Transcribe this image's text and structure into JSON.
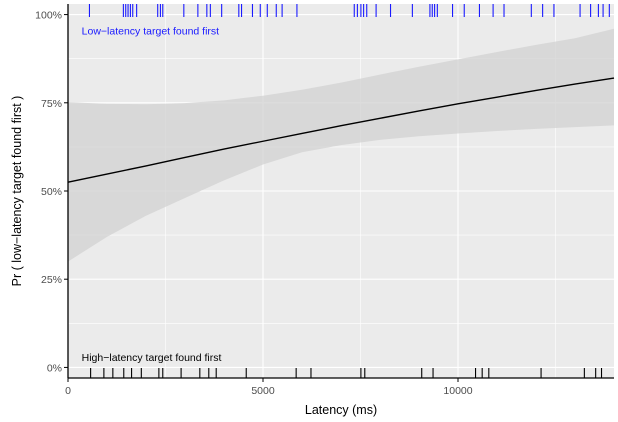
{
  "chart_data": {
    "type": "line",
    "title": "",
    "xlabel": "Latency (ms)",
    "ylabel": "Pr ( low−latency target found first )",
    "xlim": [
      0,
      14000
    ],
    "ylim": [
      -0.03,
      1.03
    ],
    "x_ticks": [
      0,
      5000,
      10000
    ],
    "x_tick_labels": [
      "0",
      "5000",
      "10000"
    ],
    "y_ticks": [
      0,
      0.25,
      0.5,
      0.75,
      1.0
    ],
    "y_tick_labels": [
      "0%",
      "25%",
      "50%",
      "75%",
      "100%"
    ],
    "grid": true,
    "colors": {
      "panel": "#ebebeb",
      "grid": "#ffffff",
      "fit_line": "#000000",
      "ribbon": "#d2d2d2",
      "top_rug": "#1a1aff",
      "bottom_rug": "#000000",
      "axis": "#000000",
      "tick_text": "#4d4d4d"
    },
    "annotations": [
      {
        "text": "Low−latency target found first",
        "x": 350,
        "y": 0.955,
        "color": "#1a1aff"
      },
      {
        "text": "High−latency target found first",
        "x": 350,
        "y": 0.03,
        "color": "#000000"
      }
    ],
    "series": [
      {
        "kind": "fit",
        "x": [
          0,
          1000,
          2000,
          3000,
          4000,
          5000,
          6000,
          7000,
          8000,
          9000,
          10000,
          11000,
          12000,
          13000,
          14000
        ],
        "y": [
          0.525,
          0.548,
          0.571,
          0.595,
          0.619,
          0.641,
          0.663,
          0.685,
          0.706,
          0.727,
          0.747,
          0.766,
          0.785,
          0.803,
          0.82
        ],
        "lower": [
          0.3,
          0.37,
          0.43,
          0.48,
          0.53,
          0.575,
          0.61,
          0.63,
          0.645,
          0.655,
          0.663,
          0.67,
          0.676,
          0.681,
          0.686
        ],
        "upper": [
          0.752,
          0.747,
          0.746,
          0.749,
          0.757,
          0.77,
          0.787,
          0.807,
          0.83,
          0.852,
          0.873,
          0.894,
          0.914,
          0.933,
          0.96
        ]
      },
      {
        "kind": "rug",
        "position": "top",
        "x": [
          550,
          1420,
          1480,
          1540,
          1600,
          1660,
          1760,
          2300,
          2370,
          2430,
          2970,
          3330,
          3560,
          3650,
          3940,
          4380,
          4450,
          4730,
          4930,
          5110,
          5340,
          5490,
          5870,
          7340,
          7420,
          7510,
          7580,
          7660,
          7900,
          8270,
          8830,
          9280,
          9340,
          9400,
          9470,
          9860,
          10160,
          10550,
          10900,
          11180,
          11880,
          12170,
          12460,
          13130,
          13400,
          13600,
          13720,
          13880
        ]
      },
      {
        "kind": "rug",
        "position": "bottom",
        "x": [
          580,
          920,
          1150,
          1430,
          1630,
          1880,
          2330,
          2430,
          2900,
          3380,
          3610,
          3800,
          4570,
          5850,
          6230,
          7510,
          7610,
          9070,
          9360,
          10450,
          10620,
          10790,
          12130,
          13240,
          13530,
          13680
        ]
      }
    ]
  }
}
